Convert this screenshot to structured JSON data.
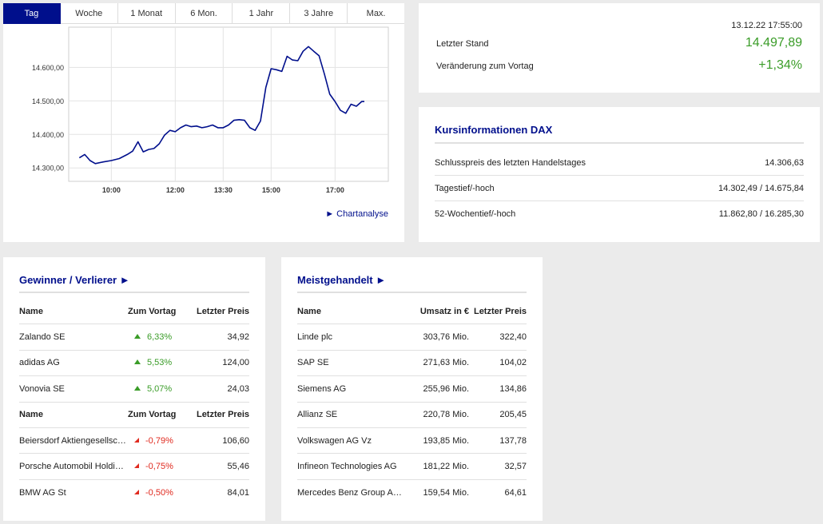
{
  "chart": {
    "tabs": [
      "Tag",
      "Woche",
      "1 Monat",
      "6 Mon.",
      "1 Jahr",
      "3 Jahre",
      "Max."
    ],
    "active_tab": "Tag",
    "link": "► Chartanalyse"
  },
  "chart_data": {
    "type": "line",
    "title": "",
    "xlabel": "",
    "ylabel": "",
    "x_ticks": [
      "10:00",
      "12:00",
      "13:30",
      "15:00",
      "17:00"
    ],
    "y_ticks": [
      "14.300,00",
      "14.400,00",
      "14.500,00",
      "14.600,00"
    ],
    "ylim": [
      14260,
      14720
    ],
    "grid": true,
    "color": "#000f8c",
    "series": [
      {
        "name": "",
        "points": [
          [
            "09:00",
            14330
          ],
          [
            "09:10",
            14340
          ],
          [
            "09:20",
            14322
          ],
          [
            "09:30",
            14313
          ],
          [
            "09:45",
            14318
          ],
          [
            "10:00",
            14322
          ],
          [
            "10:15",
            14328
          ],
          [
            "10:30",
            14340
          ],
          [
            "10:40",
            14350
          ],
          [
            "10:50",
            14378
          ],
          [
            "11:00",
            14348
          ],
          [
            "11:10",
            14355
          ],
          [
            "11:20",
            14358
          ],
          [
            "11:30",
            14372
          ],
          [
            "11:40",
            14398
          ],
          [
            "11:50",
            14412
          ],
          [
            "12:00",
            14408
          ],
          [
            "12:10",
            14420
          ],
          [
            "12:20",
            14428
          ],
          [
            "12:30",
            14423
          ],
          [
            "12:40",
            14425
          ],
          [
            "12:50",
            14420
          ],
          [
            "13:00",
            14423
          ],
          [
            "13:10",
            14428
          ],
          [
            "13:20",
            14420
          ],
          [
            "13:30",
            14420
          ],
          [
            "13:40",
            14428
          ],
          [
            "13:50",
            14442
          ],
          [
            "14:00",
            14444
          ],
          [
            "14:10",
            14442
          ],
          [
            "14:20",
            14420
          ],
          [
            "14:30",
            14412
          ],
          [
            "14:40",
            14440
          ],
          [
            "14:50",
            14540
          ],
          [
            "15:00",
            14596
          ],
          [
            "15:10",
            14593
          ],
          [
            "15:20",
            14588
          ],
          [
            "15:30",
            14633
          ],
          [
            "15:40",
            14622
          ],
          [
            "15:50",
            14620
          ],
          [
            "16:00",
            14648
          ],
          [
            "16:10",
            14662
          ],
          [
            "16:20",
            14648
          ],
          [
            "16:30",
            14635
          ],
          [
            "16:40",
            14580
          ],
          [
            "16:50",
            14520
          ],
          [
            "17:00",
            14498
          ],
          [
            "17:10",
            14472
          ],
          [
            "17:20",
            14463
          ],
          [
            "17:30",
            14490
          ],
          [
            "17:40",
            14484
          ],
          [
            "17:50",
            14498
          ],
          [
            "17:55",
            14498
          ]
        ]
      }
    ]
  },
  "quote": {
    "timestamp": "13.12.22 17:55:00",
    "last_label": "Letzter Stand",
    "last_value": "14.497,89",
    "change_label": "Veränderung zum Vortag",
    "change_value": "+1,34%",
    "positive_color": "#3a9c28"
  },
  "kurs": {
    "title": "Kursinformationen DAX",
    "rows": [
      {
        "label": "Schlusspreis des letzten Handelstages",
        "value": "14.306,63"
      },
      {
        "label": "Tagestief/-hoch",
        "value": "14.302,49 / 14.675,84"
      },
      {
        "label": "52-Wochentief/-hoch",
        "value": "11.862,80 / 16.285,30"
      }
    ]
  },
  "gewinner": {
    "title": "Gewinner / Verlierer ►",
    "header": {
      "name": "Name",
      "change": "Zum Vortag",
      "price": "Letzter Preis"
    },
    "winners": [
      {
        "name": "Zalando SE",
        "change": "6,33%",
        "price": "34,92"
      },
      {
        "name": "adidas AG",
        "change": "5,53%",
        "price": "124,00"
      },
      {
        "name": "Vonovia SE",
        "change": "5,07%",
        "price": "24,03"
      }
    ],
    "losers": [
      {
        "name": "Beiersdorf Aktiengesellschaft",
        "change": "-0,79%",
        "price": "106,60"
      },
      {
        "name": "Porsche Automobil Holding…",
        "change": "-0,75%",
        "price": "55,46"
      },
      {
        "name": "BMW AG St",
        "change": "-0,50%",
        "price": "84,01"
      }
    ]
  },
  "meist": {
    "title": "Meistgehandelt ►",
    "header": {
      "name": "Name",
      "umsatz": "Umsatz in €",
      "price": "Letzter Preis"
    },
    "rows": [
      {
        "name": "Linde plc",
        "umsatz": "303,76 Mio.",
        "price": "322,40"
      },
      {
        "name": "SAP SE",
        "umsatz": "271,63 Mio.",
        "price": "104,02"
      },
      {
        "name": "Siemens AG",
        "umsatz": "255,96 Mio.",
        "price": "134,86"
      },
      {
        "name": "Allianz SE",
        "umsatz": "220,78 Mio.",
        "price": "205,45"
      },
      {
        "name": "Volkswagen AG Vz",
        "umsatz": "193,85 Mio.",
        "price": "137,78"
      },
      {
        "name": "Infineon Technologies AG",
        "umsatz": "181,22 Mio.",
        "price": "32,57"
      },
      {
        "name": "Mercedes Benz Group AG…",
        "umsatz": "159,54 Mio.",
        "price": "64,61"
      }
    ]
  }
}
